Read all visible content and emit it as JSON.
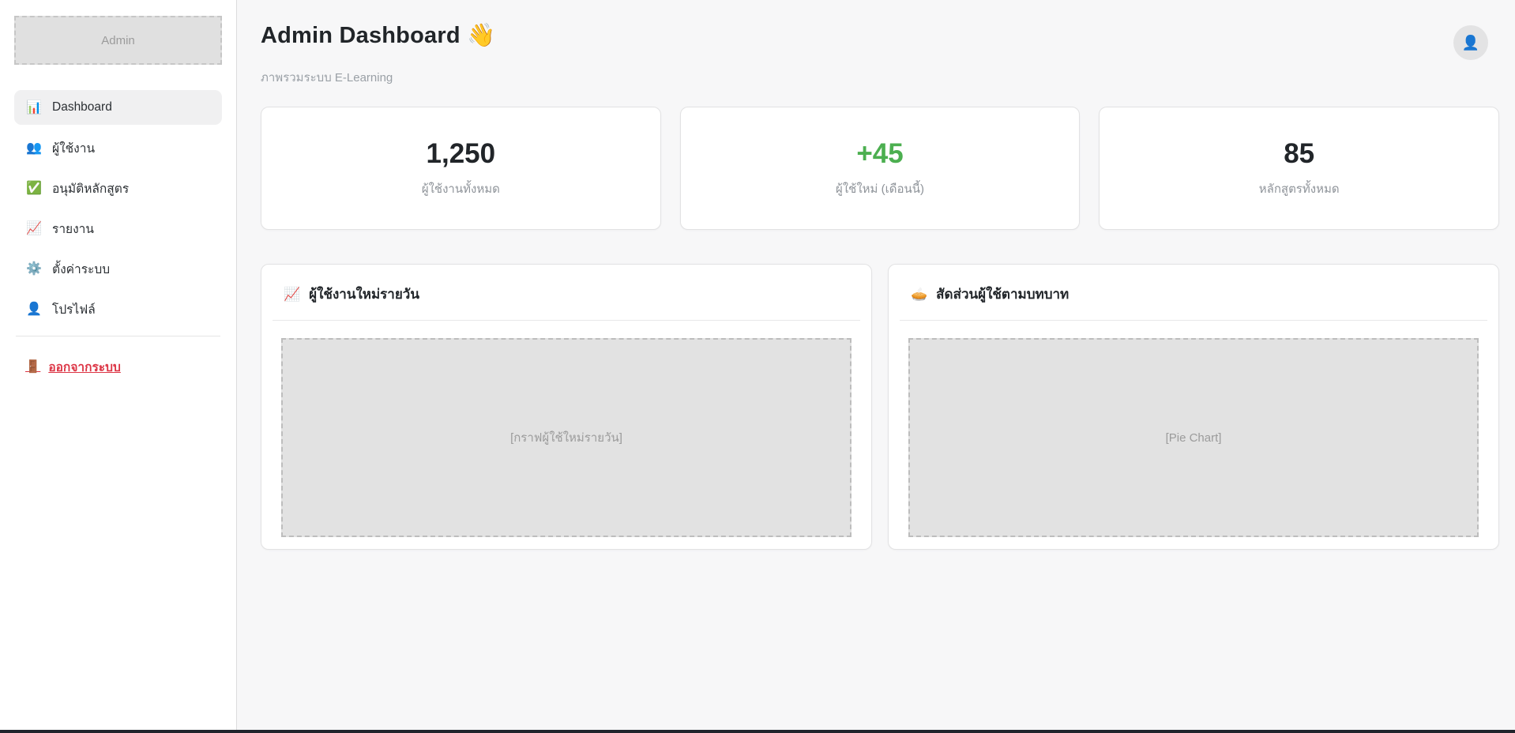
{
  "colors": {
    "positive_green": "#4caf50",
    "logout_red": "#dc3545",
    "main_background": "#f7f7f8",
    "bottom_bar": "#20242c"
  },
  "sidebar": {
    "brand": "Admin",
    "menu": [
      {
        "icon": "📊",
        "label": "Dashboard",
        "active": true
      },
      {
        "icon": "👥",
        "label": "ผู้ใช้งาน",
        "active": false
      },
      {
        "icon": "✅",
        "label": "อนุมัติหลักสูตร",
        "active": false
      },
      {
        "icon": "📈",
        "label": "รายงาน",
        "active": false
      },
      {
        "icon": "⚙️",
        "label": "ตั้งค่าระบบ",
        "active": false
      },
      {
        "icon": "👤",
        "label": "โปรไฟล์",
        "active": false
      }
    ],
    "logout": {
      "icon": "🚪",
      "label": "ออกจากระบบ"
    }
  },
  "header": {
    "title": "Admin Dashboard",
    "wave_icon": "👋",
    "subtitle": "ภาพรวมระบบ E-Learning",
    "avatar_icon": "👤"
  },
  "stats": [
    {
      "value": "1,250",
      "label": "ผู้ใช้งานทั้งหมด"
    },
    {
      "value": "+45",
      "label": "ผู้ใช้ใหม่ (เดือนนี้)"
    },
    {
      "value": "85",
      "label": "หลักสูตรทั้งหมด"
    }
  ],
  "charts": [
    {
      "icon": "📈",
      "title": "ผู้ใช้งานใหม่รายวัน",
      "placeholder": "[กราฟผู้ใช้ใหม่รายวัน]"
    },
    {
      "icon": "🥧",
      "title": "สัดส่วนผู้ใช้ตามบทบาท",
      "placeholder": "[Pie Chart]"
    }
  ]
}
